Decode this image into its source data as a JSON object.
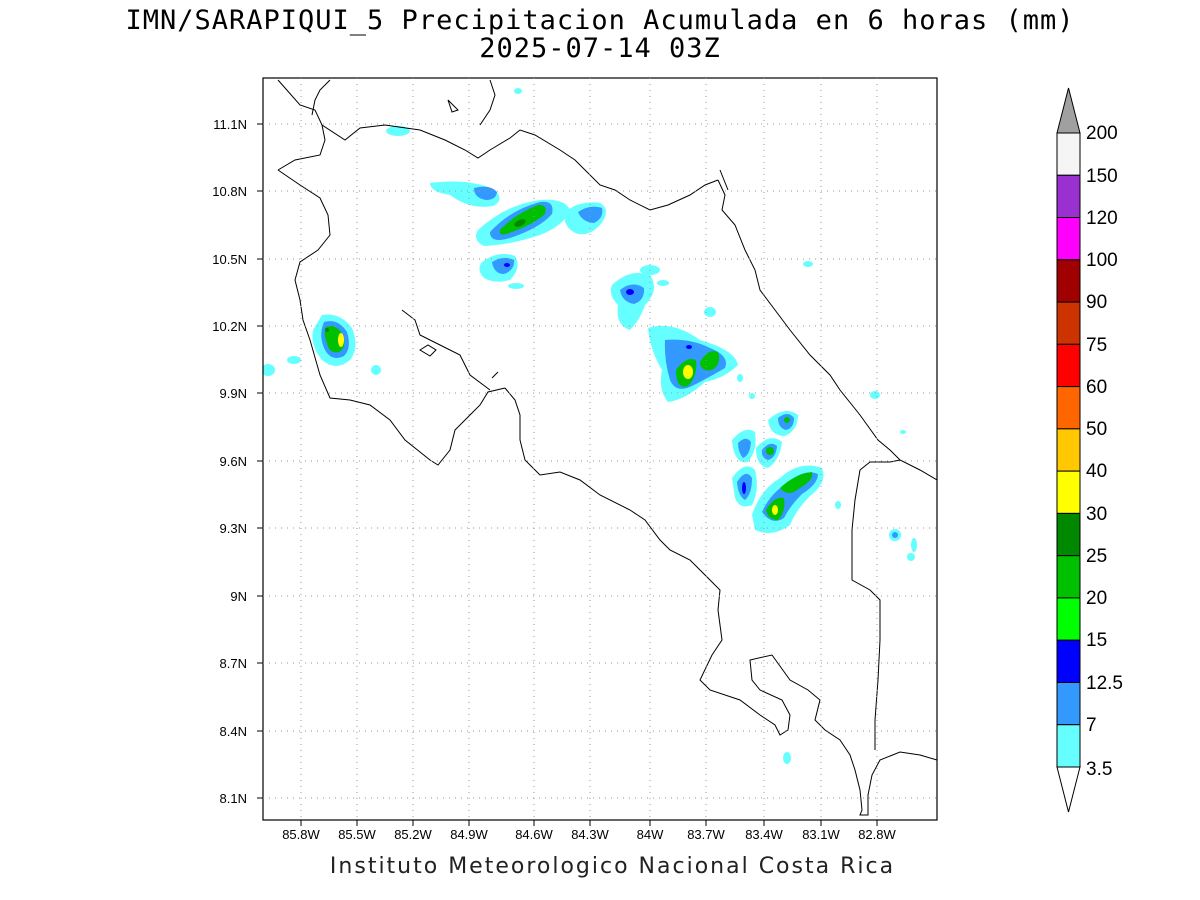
{
  "title": {
    "line1": "IMN/SARAPIQUI_5 Precipitacion Acumulada en 6 horas (mm)",
    "line2": "2025-07-14 03Z"
  },
  "footer": "Instituto Meteorologico Nacional Costa Rica",
  "axes": {
    "x_ticks": [
      "85.8W",
      "85.5W",
      "85.2W",
      "84.9W",
      "84.6W",
      "84.3W",
      "84W",
      "83.7W",
      "83.4W",
      "83.1W",
      "82.8W"
    ],
    "y_ticks": [
      "11.1N",
      "10.8N",
      "10.5N",
      "10.2N",
      "9.9N",
      "9.6N",
      "9.3N",
      "9N",
      "8.7N",
      "8.4N",
      "8.1N"
    ]
  },
  "colorbar": {
    "labels": [
      "200",
      "150",
      "120",
      "100",
      "90",
      "75",
      "60",
      "50",
      "40",
      "30",
      "25",
      "20",
      "15",
      "12.5",
      "7",
      "3.5"
    ],
    "colors": [
      "#f5f5f5",
      "#9b30d0",
      "#ff00ff",
      "#a00000",
      "#cc3300",
      "#ff0000",
      "#ff6600",
      "#ffc800",
      "#ffff00",
      "#008800",
      "#00c000",
      "#00ff00",
      "#0000ff",
      "#3399ff",
      "#66ffff"
    ],
    "top_arrow_color": "#a0a0a0",
    "bottom_arrow_color": "#ffffff"
  },
  "precipitation_cells": [
    {
      "lon": -85.62,
      "lat": 10.15,
      "max_class": "20"
    },
    {
      "lon": -84.62,
      "lat": 10.67,
      "max_class": "20"
    },
    {
      "lon": -84.32,
      "lat": 10.7,
      "max_class": "7"
    },
    {
      "lon": -84.74,
      "lat": 10.47,
      "max_class": "12.5"
    },
    {
      "lon": -84.0,
      "lat": 10.33,
      "max_class": "12.5"
    },
    {
      "lon": -83.77,
      "lat": 10.02,
      "max_class": "30"
    },
    {
      "lon": -83.67,
      "lat": 10.06,
      "max_class": "25"
    },
    {
      "lon": -83.4,
      "lat": 9.48,
      "max_class": "12.5"
    },
    {
      "lon": -83.38,
      "lat": 9.65,
      "max_class": "15"
    },
    {
      "lon": -83.31,
      "lat": 9.64,
      "max_class": "15"
    },
    {
      "lon": -83.27,
      "lat": 9.78,
      "max_class": "15"
    },
    {
      "lon": -83.32,
      "lat": 9.38,
      "max_class": "30"
    },
    {
      "lon": -83.2,
      "lat": 9.53,
      "max_class": "20"
    }
  ]
}
